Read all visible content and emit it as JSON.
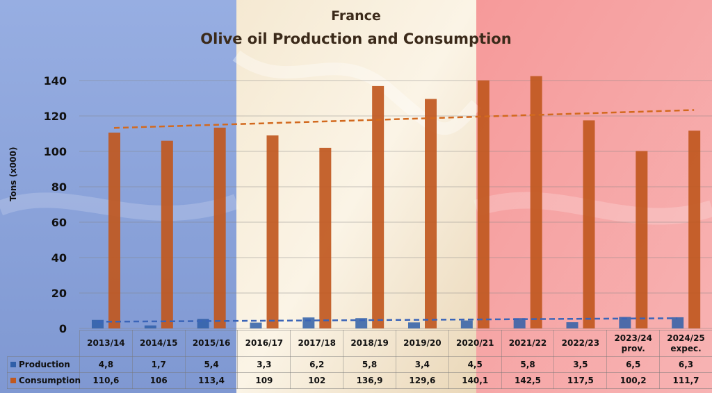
{
  "title": "France",
  "subtitle": "Olive oil Production and Consumption",
  "colors": {
    "production": "#2f5fa8",
    "consumption": "#c0581f",
    "flag_blue": "#8ea6dc",
    "flag_white": "#f7ebd4",
    "flag_red": "#f5a0a0"
  },
  "chart_data": {
    "type": "bar",
    "title": "France",
    "subtitle": "Olive oil Production and Consumption",
    "ylabel": "Tons (x000)",
    "ylim": [
      0,
      140
    ],
    "yticks": [
      "0",
      "20",
      "40",
      "60",
      "80",
      "100",
      "120",
      "140"
    ],
    "grid": true,
    "categories": [
      "2013/14",
      "2014/15",
      "2015/16",
      "2016/17",
      "2017/18",
      "2018/19",
      "2019/20",
      "2020/21",
      "2021/22",
      "2022/23",
      "2023/24 prov.",
      "2024/25 expec."
    ],
    "category_lines": [
      [
        "2013/14"
      ],
      [
        "2014/15"
      ],
      [
        "2015/16"
      ],
      [
        "2016/17"
      ],
      [
        "2017/18"
      ],
      [
        "2018/19"
      ],
      [
        "2019/20"
      ],
      [
        "2020/21"
      ],
      [
        "2021/22"
      ],
      [
        "2022/23"
      ],
      [
        "2023/24",
        "prov."
      ],
      [
        "2024/25",
        "expec."
      ]
    ],
    "series": [
      {
        "name": "Production",
        "values": [
          4.8,
          1.7,
          5.4,
          3.3,
          6.2,
          5.8,
          3.4,
          4.5,
          5.8,
          3.5,
          6.5,
          6.3
        ],
        "labels": [
          "4,8",
          "1,7",
          "5,4",
          "3,3",
          "6,2",
          "5,8",
          "3,4",
          "4,5",
          "5,8",
          "3,5",
          "6,5",
          "6,3"
        ]
      },
      {
        "name": "Consumption",
        "values": [
          110.6,
          106,
          113.4,
          109,
          102,
          136.9,
          129.6,
          140.1,
          142.5,
          117.5,
          100.2,
          111.7
        ],
        "labels": [
          "110,6",
          "106",
          "113,4",
          "109",
          "102",
          "136,9",
          "129,6",
          "140,1",
          "142,5",
          "117,5",
          "100,2",
          "111,7"
        ]
      }
    ],
    "trendlines": true,
    "legend": "data-table"
  }
}
